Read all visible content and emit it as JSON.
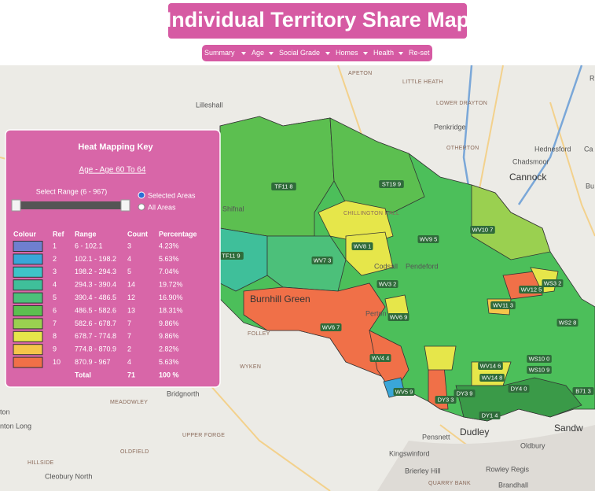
{
  "header": {
    "title": "Individual Territory Share Map"
  },
  "menu": {
    "items": [
      "Summary",
      "Age",
      "Social Grade",
      "Homes",
      "Health",
      "Re-set"
    ]
  },
  "key": {
    "title": "Heat Mapping Key",
    "subtitle": "Age - Age 60 To 64",
    "range_label": "Select Range (6 - 967)",
    "options": [
      "Selected Areas",
      "All Areas"
    ],
    "columns": [
      "Colour",
      "Ref",
      "Range",
      "Count",
      "Percentage"
    ],
    "rows": [
      {
        "color": "#6f7fcf",
        "ref": "1",
        "range": "6 - 102.1",
        "count": "3",
        "percentage": "4.23%"
      },
      {
        "color": "#3aa6d8",
        "ref": "2",
        "range": "102.1 - 198.2",
        "count": "4",
        "percentage": "5.63%"
      },
      {
        "color": "#3ec4c8",
        "ref": "3",
        "range": "198.2 - 294.3",
        "count": "5",
        "percentage": "7.04%"
      },
      {
        "color": "#3fbf9a",
        "ref": "4",
        "range": "294.3 - 390.4",
        "count": "14",
        "percentage": "19.72%"
      },
      {
        "color": "#4cc07a",
        "ref": "5",
        "range": "390.4 - 486.5",
        "count": "12",
        "percentage": "16.90%"
      },
      {
        "color": "#5cbf50",
        "ref": "6",
        "range": "486.5 - 582.6",
        "count": "13",
        "percentage": "18.31%"
      },
      {
        "color": "#9ad050",
        "ref": "7",
        "range": "582.6 - 678.7",
        "count": "7",
        "percentage": "9.86%"
      },
      {
        "color": "#e6e64a",
        "ref": "8",
        "range": "678.7 - 774.8",
        "count": "7",
        "percentage": "9.86%"
      },
      {
        "color": "#f5c54a",
        "ref": "9",
        "range": "774.8 - 870.9",
        "count": "2",
        "percentage": "2.82%"
      },
      {
        "color": "#f07048",
        "ref": "10",
        "range": "870.9 - 967",
        "count": "4",
        "percentage": "5.63%"
      }
    ],
    "total": {
      "label": "Total",
      "count": "71",
      "percentage": "100 %"
    }
  },
  "map": {
    "places": [
      "APETON",
      "LITTLE HEATH",
      "Lilleshall",
      "LOWER DRAYTON",
      "Penkridge",
      "OTHERTON",
      "Hednesford",
      "Chadsmoor",
      "Cannock",
      "CHILLINGTON HALL",
      "Codsall",
      "Pendeford",
      "Burnhill Green",
      "Perton",
      "FOLLEY",
      "WYKEN",
      "Bridgnorth",
      "MEADOWLEY",
      "UPPER FORGE",
      "OLDFIELD",
      "HILLSIDE",
      "Cleobury North",
      "Pensnett",
      "Dudley",
      "Kingswinford",
      "Brierley Hill",
      "QUARRY BANK",
      "Rowley Regis",
      "Brandhall",
      "Oldbury",
      "Sandw",
      "ton",
      "nton Long",
      "Shifnal",
      "Bu",
      "Ca",
      "R"
    ],
    "areas": [
      "TF11 8",
      "ST19 9",
      "WV8 1",
      "WV7 3",
      "TF11 9",
      "WV9 5",
      "WV10 7",
      "WV6 7",
      "WV4 4",
      "WV5 9",
      "DY3 3",
      "WV3 2",
      "WV6 9",
      "WV12 5",
      "WS3 2",
      "WS2 8",
      "WV11 3",
      "WV14 6",
      "WV14 8",
      "DY4 0",
      "WS10 9",
      "WS10 0",
      "DY3 9",
      "DY1 4",
      "B71 3"
    ]
  }
}
